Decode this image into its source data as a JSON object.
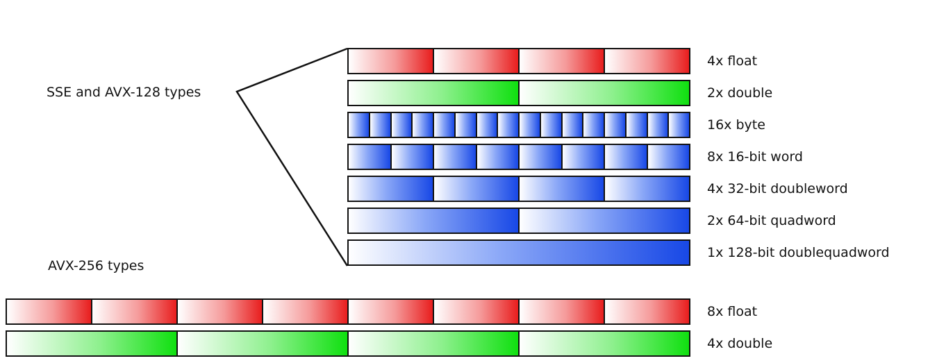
{
  "groups": {
    "sse_label": "SSE and AVX-128 types",
    "avx256_label": "AVX-256 types"
  },
  "rows_128": [
    {
      "label": "4x float",
      "lanes": 4,
      "color": "red"
    },
    {
      "label": "2x double",
      "lanes": 2,
      "color": "green"
    },
    {
      "label": "16x byte",
      "lanes": 16,
      "color": "blue"
    },
    {
      "label": "8x 16-bit word",
      "lanes": 8,
      "color": "blue"
    },
    {
      "label": "4x 32-bit doubleword",
      "lanes": 4,
      "color": "blue"
    },
    {
      "label": "2x 64-bit quadword",
      "lanes": 2,
      "color": "blue"
    },
    {
      "label": "1x 128-bit doublequadword",
      "lanes": 1,
      "color": "blue"
    }
  ],
  "rows_256": [
    {
      "label": "8x float",
      "lanes": 8,
      "color": "red"
    },
    {
      "label": "4x double",
      "lanes": 4,
      "color": "green"
    }
  ],
  "colors": {
    "float": "#e81e1e",
    "double": "#10e010",
    "integer": "#1848e6",
    "outline": "#111111"
  }
}
